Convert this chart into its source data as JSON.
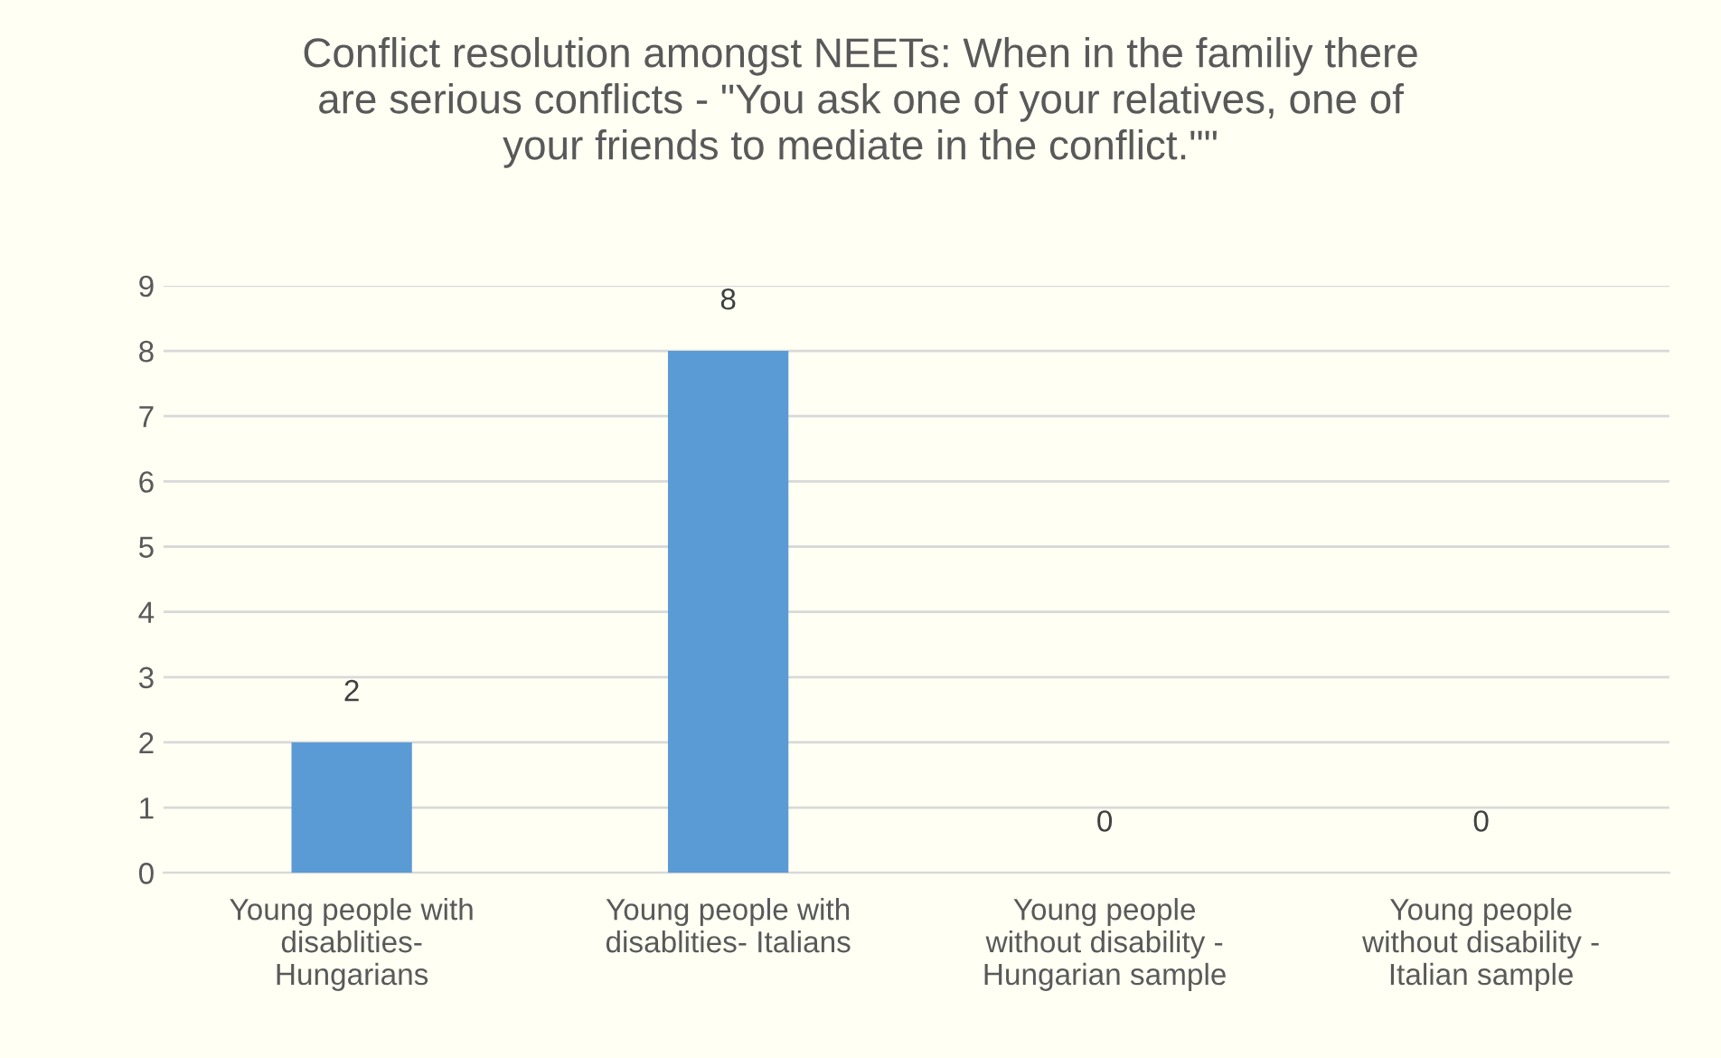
{
  "chart_data": {
    "type": "bar",
    "title": "Conflict resolution amongst NEETs: When in the familiy there\nare serious conflicts - \"You ask one of your relatives, one of\nyour friends to mediate in the conflict.\"\"",
    "categories": [
      "Young people with\ndisablities-\nHungarians",
      "Young people with\ndisablities- Italians",
      "Young people\nwithout disability -\nHungarian sample",
      "Young people\nwithout disability -\nItalian sample"
    ],
    "values": [
      2,
      8,
      0,
      0
    ],
    "color": "#5b9bd5",
    "ylim": [
      0,
      9
    ],
    "yticks": [
      0,
      1,
      2,
      3,
      4,
      5,
      6,
      7,
      8,
      9
    ],
    "grid": "y",
    "data_labels": true
  }
}
